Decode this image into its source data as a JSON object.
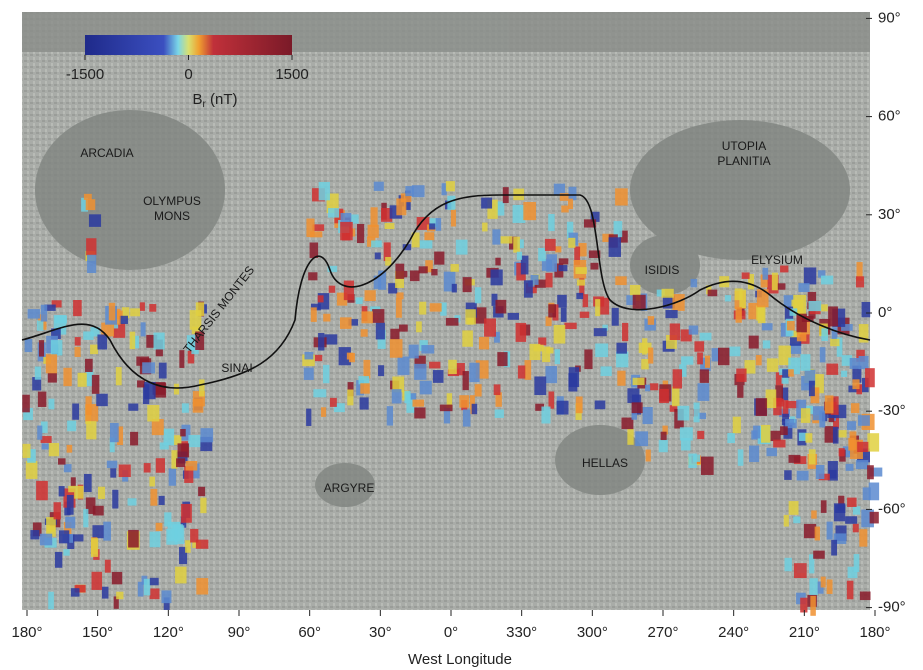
{
  "map": {
    "colorbar": {
      "range": [
        -1500,
        1500
      ],
      "ticks": [
        -1500,
        0,
        1500
      ],
      "symbol": "B",
      "subscript": "r",
      "unit": "(nT)"
    },
    "regions": [
      {
        "lines": [
          "ARCADIA"
        ]
      },
      {
        "lines": [
          "OLYMPUS",
          "MONS"
        ]
      },
      {
        "lines": [
          "THARSIS MONTES"
        ]
      },
      {
        "lines": [
          "SINAI"
        ]
      },
      {
        "lines": [
          "ARGYRE"
        ]
      },
      {
        "lines": [
          "HELLAS"
        ]
      },
      {
        "lines": [
          "ISIDIS"
        ]
      },
      {
        "lines": [
          "UTOPIA",
          "PLANITIA"
        ]
      },
      {
        "lines": [
          "ELYSIUM"
        ]
      }
    ],
    "latitude_ticks": [
      {
        "value": 90,
        "label": "90°"
      },
      {
        "value": 60,
        "label": "60°"
      },
      {
        "value": 30,
        "label": "30°"
      },
      {
        "value": 0,
        "label": "0°"
      },
      {
        "value": -30,
        "label": "-30°"
      },
      {
        "value": -60,
        "label": "-60°"
      },
      {
        "value": -90,
        "label": "-90°"
      }
    ],
    "longitude_ticks": [
      {
        "value": 180,
        "label": "180°"
      },
      {
        "value": 150,
        "label": "150°"
      },
      {
        "value": 120,
        "label": "120°"
      },
      {
        "value": 90,
        "label": "90°"
      },
      {
        "value": 60,
        "label": "60°"
      },
      {
        "value": 30,
        "label": "30°"
      },
      {
        "value": 0,
        "label": "0°"
      },
      {
        "value": 330,
        "label": "330°"
      },
      {
        "value": 300,
        "label": "300°"
      },
      {
        "value": 270,
        "label": "270°"
      },
      {
        "value": 240,
        "label": "240°"
      },
      {
        "value": 210,
        "label": "210°"
      },
      {
        "value": 180,
        "label": "180°"
      }
    ],
    "x_title": "West Longitude"
  }
}
